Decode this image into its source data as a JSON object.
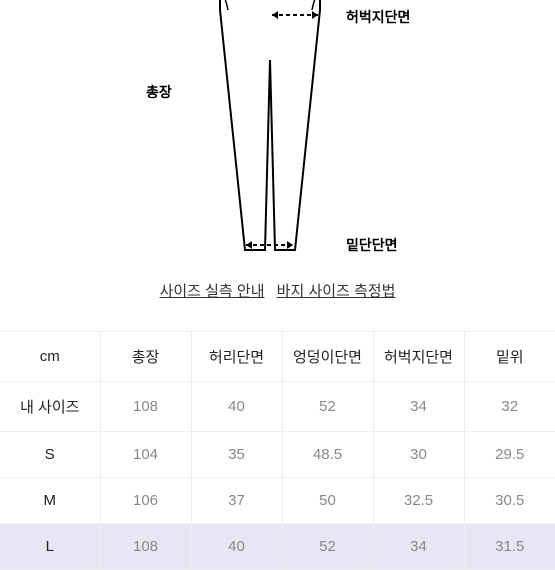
{
  "diagram": {
    "labels": {
      "total_length": "총장",
      "thigh_section": "허벅지단면",
      "hem_section": "밑단단면"
    }
  },
  "links": {
    "size_guide": "사이즈 실측 안내",
    "pants_measure": "바지 사이즈 측정법"
  },
  "table": {
    "unit": "cm",
    "columns": [
      "총장",
      "허리단면",
      "엉덩이단면",
      "허벅지단면",
      "밑위"
    ],
    "rows": [
      {
        "label": "내 사이즈",
        "values": [
          "108",
          "40",
          "52",
          "34",
          "32"
        ],
        "highlight": false
      },
      {
        "label": "S",
        "values": [
          "104",
          "35",
          "48.5",
          "30",
          "29.5"
        ],
        "highlight": false
      },
      {
        "label": "M",
        "values": [
          "106",
          "37",
          "50",
          "32.5",
          "30.5"
        ],
        "highlight": false
      },
      {
        "label": "L",
        "values": [
          "108",
          "40",
          "52",
          "34",
          "31.5"
        ],
        "highlight": true
      }
    ]
  }
}
